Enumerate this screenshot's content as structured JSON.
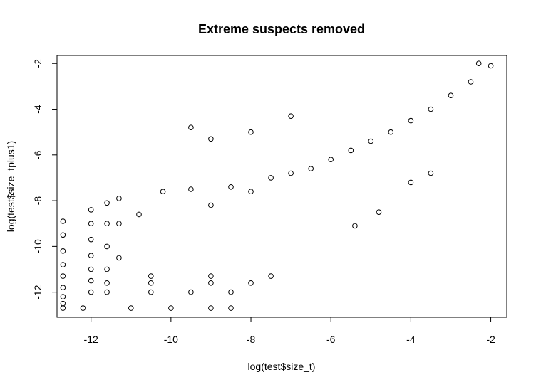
{
  "chart_data": {
    "type": "scatter",
    "title": "Extreme suspects removed",
    "xlabel": "log(test$size_t)",
    "ylabel": "log(test$size_tplus1)",
    "xlim": [
      -12.85,
      -1.6
    ],
    "ylim": [
      -13.1,
      -1.65
    ],
    "xticks": [
      -12,
      -10,
      -8,
      -6,
      -4,
      -2
    ],
    "yticks": [
      -12,
      -10,
      -8,
      -6,
      -4,
      -2
    ],
    "grid": false,
    "legend": "none",
    "marker": "open-circle",
    "series": [
      {
        "values": [
          {
            "x": -12.7,
            "y": -8.9
          },
          {
            "x": -12.7,
            "y": -9.5
          },
          {
            "x": -12.7,
            "y": -10.2
          },
          {
            "x": -12.7,
            "y": -10.8
          },
          {
            "x": -12.7,
            "y": -11.3
          },
          {
            "x": -12.7,
            "y": -11.8
          },
          {
            "x": -12.7,
            "y": -12.2
          },
          {
            "x": -12.7,
            "y": -12.5
          },
          {
            "x": -12.7,
            "y": -12.7
          },
          {
            "x": -12.0,
            "y": -8.4
          },
          {
            "x": -12.0,
            "y": -9.0
          },
          {
            "x": -12.0,
            "y": -9.7
          },
          {
            "x": -12.0,
            "y": -10.4
          },
          {
            "x": -12.0,
            "y": -11.0
          },
          {
            "x": -12.0,
            "y": -11.5
          },
          {
            "x": -12.0,
            "y": -12.0
          },
          {
            "x": -11.6,
            "y": -8.1
          },
          {
            "x": -11.6,
            "y": -9.0
          },
          {
            "x": -11.6,
            "y": -10.0
          },
          {
            "x": -11.6,
            "y": -11.0
          },
          {
            "x": -11.6,
            "y": -11.6
          },
          {
            "x": -11.6,
            "y": -12.0
          },
          {
            "x": -11.3,
            "y": -7.9
          },
          {
            "x": -11.3,
            "y": -9.0
          },
          {
            "x": -11.3,
            "y": -10.5
          },
          {
            "x": -10.8,
            "y": -8.6
          },
          {
            "x": -10.2,
            "y": -7.6
          },
          {
            "x": -9.5,
            "y": -7.5
          },
          {
            "x": -9.0,
            "y": -8.2
          },
          {
            "x": -8.5,
            "y": -7.4
          },
          {
            "x": -8.0,
            "y": -7.6
          },
          {
            "x": -7.5,
            "y": -7.0
          },
          {
            "x": -7.0,
            "y": -6.8
          },
          {
            "x": -6.5,
            "y": -6.6
          },
          {
            "x": -6.0,
            "y": -6.2
          },
          {
            "x": -5.5,
            "y": -5.8
          },
          {
            "x": -5.0,
            "y": -5.4
          },
          {
            "x": -4.5,
            "y": -5.0
          },
          {
            "x": -4.0,
            "y": -4.5
          },
          {
            "x": -3.5,
            "y": -4.0
          },
          {
            "x": -3.0,
            "y": -3.4
          },
          {
            "x": -2.5,
            "y": -2.8
          },
          {
            "x": -2.0,
            "y": -2.1
          },
          {
            "x": -2.3,
            "y": -2.0
          },
          {
            "x": -9.0,
            "y": -5.3
          },
          {
            "x": -9.5,
            "y": -4.8
          },
          {
            "x": -8.0,
            "y": -5.0
          },
          {
            "x": -7.0,
            "y": -4.3
          },
          {
            "x": -5.4,
            "y": -9.1
          },
          {
            "x": -4.8,
            "y": -8.5
          },
          {
            "x": -4.0,
            "y": -7.2
          },
          {
            "x": -3.5,
            "y": -6.8
          },
          {
            "x": -8.5,
            "y": -12.7
          },
          {
            "x": -9.0,
            "y": -12.7
          },
          {
            "x": -10.0,
            "y": -12.7
          },
          {
            "x": -11.0,
            "y": -12.7
          },
          {
            "x": -12.2,
            "y": -12.7
          },
          {
            "x": -10.5,
            "y": -12.0
          },
          {
            "x": -9.5,
            "y": -12.0
          },
          {
            "x": -8.5,
            "y": -12.0
          },
          {
            "x": -10.5,
            "y": -11.6
          },
          {
            "x": -9.0,
            "y": -11.6
          },
          {
            "x": -8.0,
            "y": -11.6
          },
          {
            "x": -10.5,
            "y": -11.3
          },
          {
            "x": -9.0,
            "y": -11.3
          },
          {
            "x": -7.5,
            "y": -11.3
          }
        ]
      }
    ]
  }
}
